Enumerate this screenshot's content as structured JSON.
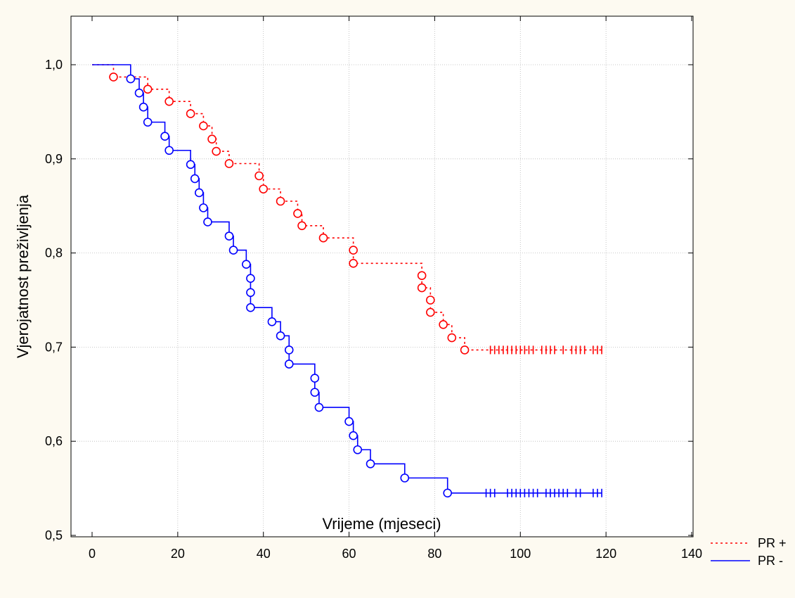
{
  "chart_data": {
    "type": "line",
    "subtype": "kaplan-meier",
    "title": "",
    "xlabel": "Vrijeme (mjeseci)",
    "ylabel": "Vjerojatnost preživljenja",
    "xlim": [
      0,
      140
    ],
    "ylim": [
      0.5,
      1.0
    ],
    "x_ticks": [
      0,
      20,
      40,
      60,
      80,
      100,
      120,
      140
    ],
    "x_tick_labels": [
      "0",
      "20",
      "40",
      "60",
      "80",
      "100",
      "120",
      "140"
    ],
    "y_ticks": [
      0.5,
      0.6,
      0.7,
      0.8,
      0.9,
      1.0
    ],
    "y_tick_labels": [
      "0,5",
      "0,6",
      "0,7",
      "0,8",
      "0,9",
      "1,0"
    ],
    "grid": true,
    "legend_position": "bottom-right outside",
    "series": [
      {
        "name": "PR +",
        "color": "#ff0000",
        "line_style": "dotted",
        "start": [
          0,
          1.0
        ],
        "end_x": 119,
        "events": [
          [
            5,
            0.987
          ],
          [
            13,
            0.974
          ],
          [
            18,
            0.961
          ],
          [
            23,
            0.948
          ],
          [
            26,
            0.935
          ],
          [
            28,
            0.921
          ],
          [
            29,
            0.908
          ],
          [
            32,
            0.895
          ],
          [
            39,
            0.882
          ],
          [
            40,
            0.868
          ],
          [
            44,
            0.855
          ],
          [
            48,
            0.842
          ],
          [
            49,
            0.829
          ],
          [
            54,
            0.816
          ],
          [
            61,
            0.803
          ],
          [
            61,
            0.789
          ],
          [
            77,
            0.776
          ],
          [
            77,
            0.763
          ],
          [
            79,
            0.75
          ],
          [
            79,
            0.737
          ],
          [
            82,
            0.724
          ],
          [
            84,
            0.71
          ],
          [
            87,
            0.697
          ]
        ],
        "censored": [
          93,
          94,
          95,
          96,
          97,
          98,
          99,
          100,
          101,
          102,
          103,
          105,
          106,
          107,
          108,
          110,
          112,
          113,
          114,
          115,
          117,
          118,
          119
        ]
      },
      {
        "name": "PR -",
        "color": "#0000ff",
        "line_style": "solid",
        "start": [
          0,
          1.0
        ],
        "end_x": 119,
        "events": [
          [
            9,
            0.985
          ],
          [
            11,
            0.97
          ],
          [
            12,
            0.955
          ],
          [
            13,
            0.939
          ],
          [
            17,
            0.924
          ],
          [
            18,
            0.909
          ],
          [
            23,
            0.894
          ],
          [
            24,
            0.879
          ],
          [
            25,
            0.864
          ],
          [
            26,
            0.848
          ],
          [
            27,
            0.833
          ],
          [
            32,
            0.818
          ],
          [
            33,
            0.803
          ],
          [
            36,
            0.788
          ],
          [
            37,
            0.773
          ],
          [
            37,
            0.758
          ],
          [
            37,
            0.742
          ],
          [
            42,
            0.727
          ],
          [
            44,
            0.712
          ],
          [
            46,
            0.697
          ],
          [
            46,
            0.682
          ],
          [
            52,
            0.667
          ],
          [
            52,
            0.652
          ],
          [
            53,
            0.636
          ],
          [
            60,
            0.621
          ],
          [
            61,
            0.606
          ],
          [
            62,
            0.591
          ],
          [
            65,
            0.576
          ],
          [
            73,
            0.561
          ],
          [
            83,
            0.545
          ]
        ],
        "censored": [
          92,
          93,
          94,
          97,
          98,
          99,
          100,
          101,
          102,
          103,
          104,
          106,
          107,
          108,
          109,
          110,
          111,
          113,
          114,
          117,
          118,
          119
        ]
      }
    ]
  }
}
